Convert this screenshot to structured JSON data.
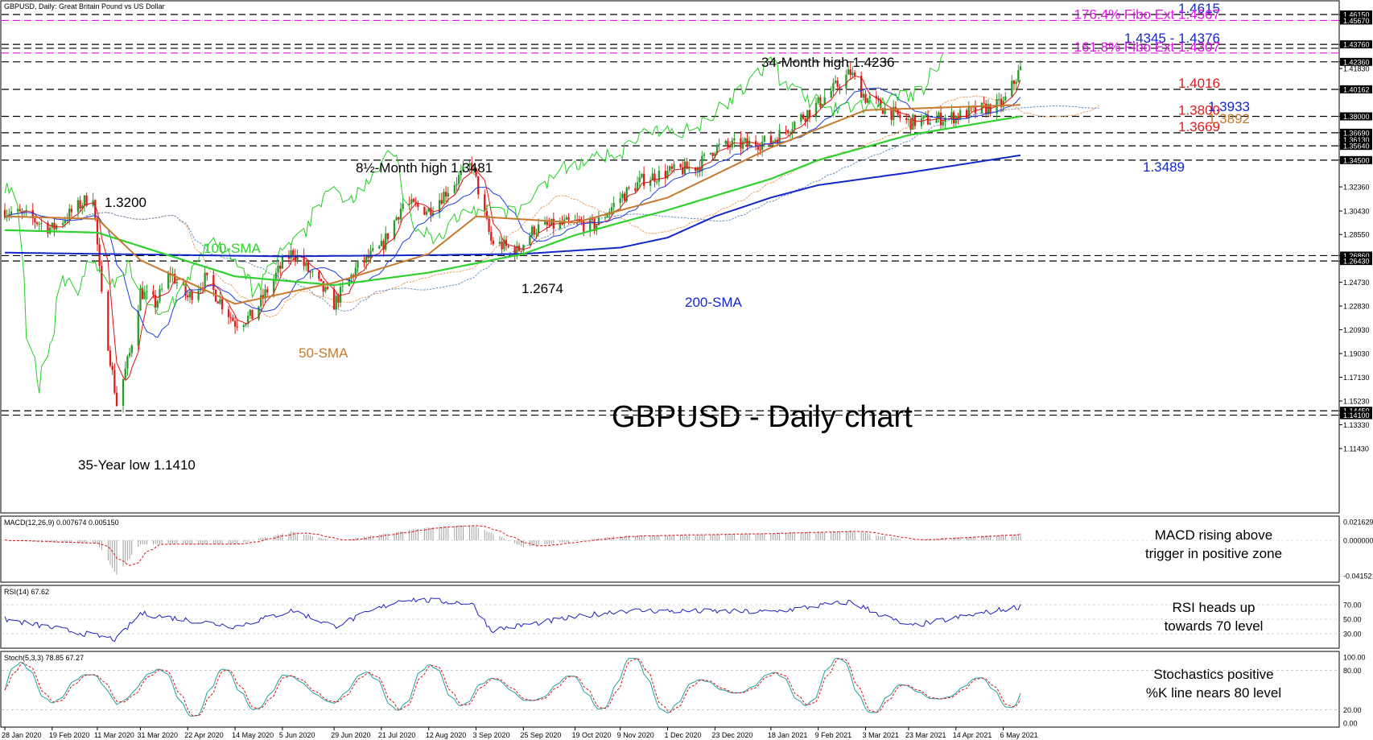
{
  "header": {
    "title": "GBPUSD, Daily:  Great Britain Pound vs US Dollar"
  },
  "main_title": "GBPUSD - Daily chart",
  "colors": {
    "bull": "#2a9a2a",
    "bear": "#e31b1b",
    "sma50": "#c57a30",
    "sma100": "#2fd12f",
    "sma200": "#1428c8",
    "tenkan": "#e01010",
    "kijun": "#1e3ce6",
    "chikou": "#22d022",
    "senkou_a": "#e8a060",
    "senkou_b": "#4a90e0",
    "fibo": "#e014e0",
    "rsi": "#2020c0",
    "macd_hist": "#a0a0a0",
    "macd_signal": "#e01010",
    "stoch_k": "#20a0a0",
    "stoch_d": "#e01010"
  },
  "x_tick_labels": [
    "28 Jan 2020",
    "19 Feb 2020",
    "11 Mar 2020",
    "31 Mar 2020",
    "22 Apr 2020",
    "14 May 2020",
    "5 Jun 2020",
    "29 Jun 2020",
    "21 Jul 2020",
    "12 Aug 2020",
    "3 Sep 2020",
    "25 Sep 2020",
    "19 Oct 2020",
    "9 Nov 2020",
    "1 Dec 2020",
    "23 Dec 2020",
    "18 Jan 2021",
    "9 Feb 2021",
    "3 Mar 2021",
    "23 Mar 2021",
    "14 Apr 2021",
    "6 May 2021"
  ],
  "main_axis_labels": [
    "1.46150",
    "1.45670",
    "1.43760",
    "1.42360",
    "1.41830",
    "1.40162",
    "1.38000",
    "1.36690",
    "1.36130",
    "1.35640",
    "1.34500",
    "1.32360",
    "1.30430",
    "1.28550",
    "1.26860",
    "1.26430",
    "1.24730",
    "1.22830",
    "1.20930",
    "1.19030",
    "1.17130",
    "1.15230",
    "1.14450",
    "1.14100",
    "1.13330",
    "1.11430"
  ],
  "main_axis_highlight": [
    "1.46150",
    "1.45670",
    "1.43760",
    "1.42360",
    "1.40162",
    "1.38000",
    "1.36690",
    "1.36130",
    "1.35640",
    "1.34500",
    "1.26860",
    "1.26430",
    "1.14450",
    "1.14100"
  ],
  "levels": [
    {
      "price": 1.4615,
      "label": "1.4615",
      "color": "#1428c8",
      "style": "dash"
    },
    {
      "price": 1.4567,
      "label": "176.4% Fibo Ext 1.4567",
      "color": "#e014e0",
      "style": "fibo"
    },
    {
      "price": 1.4376,
      "label": "1.4345 - 1.4376",
      "color": "#1428c8",
      "style": "dash"
    },
    {
      "price": 1.4345,
      "label": "",
      "color": "#000000",
      "style": "dash"
    },
    {
      "price": 1.4307,
      "label": "161.8% Fibo Ext 1.4307",
      "color": "#e014e0",
      "style": "fibo"
    },
    {
      "price": 1.4236,
      "label": "",
      "color": "#000000",
      "style": "dash"
    },
    {
      "price": 1.4016,
      "label": "1.4016",
      "color": "#e31b1b",
      "style": "dash"
    },
    {
      "price": 1.38,
      "label": "1.3800",
      "color": "#e31b1b",
      "style": "dash"
    },
    {
      "price": 1.3669,
      "label": "1.3669",
      "color": "#e31b1b",
      "style": "dash"
    },
    {
      "price": 1.3564,
      "label": "",
      "color": "#000000",
      "style": "dash"
    },
    {
      "price": 1.345,
      "label": "",
      "color": "#000000",
      "style": "dash"
    },
    {
      "price": 1.2686,
      "label": "",
      "color": "#000000",
      "style": "dash"
    },
    {
      "price": 1.2643,
      "label": "",
      "color": "#000000",
      "style": "dash"
    },
    {
      "price": 1.1445,
      "label": "",
      "color": "#000000",
      "style": "dash"
    },
    {
      "price": 1.141,
      "label": "",
      "color": "#000000",
      "style": "dash"
    }
  ],
  "annotations": {
    "high34": "34-Month high 1.4236",
    "high8": "8½-Month high 1.3481",
    "low35": "35-Year low 1.1410",
    "p13200": "1.3200",
    "p12674": "1.2674",
    "sma100": "100-SMA",
    "sma200": "200-SMA",
    "sma50": "50-SMA",
    "v13933": "1.3933",
    "v13892": "1.3892",
    "v13489": "1.3489"
  },
  "macd": {
    "title": "MACD(12,26,9) 0.007674 0.005150",
    "axis_labels": [
      "0.021629",
      "0.000000",
      "-0.041521"
    ],
    "comment_line1": "MACD rising above",
    "comment_line2": "trigger in positive zone"
  },
  "rsi": {
    "title": "RSI(14) 67.62",
    "axis_labels": [
      "70.00",
      "50.00",
      "30.00"
    ],
    "comment_line1": "RSI heads up",
    "comment_line2": "towards 70 level"
  },
  "stoch": {
    "title": "Stoch(5,3,3) 78.85 67.27",
    "axis_labels": [
      "100.00",
      "80.00",
      "20.00",
      "0.00"
    ],
    "comment_line1": "Stochastics positive",
    "comment_line2": "%K line nears 80 level"
  },
  "chart_data": {
    "type": "candlestick",
    "title": "GBPUSD - Daily chart",
    "ylim": [
      1.105,
      1.468
    ],
    "date_range": [
      "28 Jan 2020",
      "14 May 2021"
    ],
    "close_anchors": [
      {
        "date": "28 Jan 2020",
        "value": 1.305
      },
      {
        "date": "7 Feb 2020",
        "value": 1.3
      },
      {
        "date": "19 Feb 2020",
        "value": 1.29
      },
      {
        "date": "9 Mar 2020",
        "value": 1.318
      },
      {
        "date": "13 Mar 2020",
        "value": 1.235
      },
      {
        "date": "20 Mar 2020",
        "value": 1.15
      },
      {
        "date": "26 Mar 2020",
        "value": 1.19
      },
      {
        "date": "31 Mar 2020",
        "value": 1.24
      },
      {
        "date": "7 Apr 2020",
        "value": 1.23
      },
      {
        "date": "14 Apr 2020",
        "value": 1.255
      },
      {
        "date": "22 Apr 2020",
        "value": 1.235
      },
      {
        "date": "30 Apr 2020",
        "value": 1.25
      },
      {
        "date": "14 May 2020",
        "value": 1.215
      },
      {
        "date": "22 May 2020",
        "value": 1.22
      },
      {
        "date": "5 Jun 2020",
        "value": 1.262
      },
      {
        "date": "10 Jun 2020",
        "value": 1.272
      },
      {
        "date": "29 Jun 2020",
        "value": 1.23
      },
      {
        "date": "10 Jul 2020",
        "value": 1.26
      },
      {
        "date": "21 Jul 2020",
        "value": 1.275
      },
      {
        "date": "31 Jul 2020",
        "value": 1.31
      },
      {
        "date": "12 Aug 2020",
        "value": 1.305
      },
      {
        "date": "1 Sep 2020",
        "value": 1.342
      },
      {
        "date": "10 Sep 2020",
        "value": 1.28
      },
      {
        "date": "22 Sep 2020",
        "value": 1.272
      },
      {
        "date": "30 Sep 2020",
        "value": 1.29
      },
      {
        "date": "19 Oct 2020",
        "value": 1.295
      },
      {
        "date": "28 Oct 2020",
        "value": 1.292
      },
      {
        "date": "9 Nov 2020",
        "value": 1.315
      },
      {
        "date": "20 Nov 2020",
        "value": 1.33
      },
      {
        "date": "1 Dec 2020",
        "value": 1.335
      },
      {
        "date": "15 Dec 2020",
        "value": 1.34
      },
      {
        "date": "23 Dec 2020",
        "value": 1.355
      },
      {
        "date": "18 Jan 2021",
        "value": 1.36
      },
      {
        "date": "9 Feb 2021",
        "value": 1.39
      },
      {
        "date": "24 Feb 2021",
        "value": 1.415
      },
      {
        "date": "3 Mar 2021",
        "value": 1.395
      },
      {
        "date": "23 Mar 2021",
        "value": 1.375
      },
      {
        "date": "14 Apr 2021",
        "value": 1.38
      },
      {
        "date": "6 May 2021",
        "value": 1.39
      },
      {
        "date": "14 May 2021",
        "value": 1.418
      }
    ],
    "sma200": [
      {
        "date": "28 Jan 2020",
        "value": 1.271
      },
      {
        "date": "5 Jun 2020",
        "value": 1.268
      },
      {
        "date": "12 Aug 2020",
        "value": 1.269
      },
      {
        "date": "25 Sep 2020",
        "value": 1.27
      },
      {
        "date": "9 Nov 2020",
        "value": 1.275
      },
      {
        "date": "1 Dec 2020",
        "value": 1.283
      },
      {
        "date": "23 Dec 2020",
        "value": 1.3
      },
      {
        "date": "18 Jan 2021",
        "value": 1.315
      },
      {
        "date": "9 Feb 2021",
        "value": 1.325
      },
      {
        "date": "23 Mar 2021",
        "value": 1.335
      },
      {
        "date": "14 May 2021",
        "value": 1.3489
      }
    ],
    "sma100": [
      {
        "date": "28 Jan 2020",
        "value": 1.289
      },
      {
        "date": "11 Mar 2020",
        "value": 1.287
      },
      {
        "date": "14 May 2020",
        "value": 1.252
      },
      {
        "date": "29 Jun 2020",
        "value": 1.245
      },
      {
        "date": "12 Aug 2020",
        "value": 1.255
      },
      {
        "date": "25 Sep 2020",
        "value": 1.27
      },
      {
        "date": "19 Oct 2020",
        "value": 1.285
      },
      {
        "date": "9 Nov 2020",
        "value": 1.295
      },
      {
        "date": "1 Dec 2020",
        "value": 1.305
      },
      {
        "date": "18 Jan 2021",
        "value": 1.33
      },
      {
        "date": "9 Feb 2021",
        "value": 1.345
      },
      {
        "date": "23 Mar 2021",
        "value": 1.365
      },
      {
        "date": "14 May 2021",
        "value": 1.38
      }
    ],
    "sma50": [
      {
        "date": "28 Jan 2020",
        "value": 1.3
      },
      {
        "date": "11 Mar 2020",
        "value": 1.298
      },
      {
        "date": "31 Mar 2020",
        "value": 1.265
      },
      {
        "date": "14 May 2020",
        "value": 1.23
      },
      {
        "date": "29 Jun 2020",
        "value": 1.247
      },
      {
        "date": "12 Aug 2020",
        "value": 1.27
      },
      {
        "date": "3 Sep 2020",
        "value": 1.3
      },
      {
        "date": "19 Oct 2020",
        "value": 1.295
      },
      {
        "date": "1 Dec 2020",
        "value": 1.315
      },
      {
        "date": "18 Jan 2021",
        "value": 1.355
      },
      {
        "date": "9 Feb 2021",
        "value": 1.37
      },
      {
        "date": "3 Mar 2021",
        "value": 1.385
      },
      {
        "date": "14 May 2021",
        "value": 1.3892
      }
    ],
    "macd_anchors": [
      {
        "date": "28 Jan 2020",
        "value": 0.0
      },
      {
        "date": "11 Mar 2020",
        "value": -0.004
      },
      {
        "date": "20 Mar 2020",
        "value": -0.04
      },
      {
        "date": "31 Mar 2020",
        "value": -0.005
      },
      {
        "date": "14 May 2020",
        "value": -0.004
      },
      {
        "date": "10 Jun 2020",
        "value": 0.01
      },
      {
        "date": "29 Jun 2020",
        "value": -0.001
      },
      {
        "date": "12 Aug 2020",
        "value": 0.015
      },
      {
        "date": "1 Sep 2020",
        "value": 0.018
      },
      {
        "date": "25 Sep 2020",
        "value": -0.008
      },
      {
        "date": "9 Nov 2020",
        "value": 0.005
      },
      {
        "date": "18 Jan 2021",
        "value": 0.008
      },
      {
        "date": "24 Feb 2021",
        "value": 0.011
      },
      {
        "date": "23 Mar 2021",
        "value": 0.0
      },
      {
        "date": "14 May 2021",
        "value": 0.0077
      }
    ],
    "rsi_anchors": [
      {
        "date": "28 Jan 2020",
        "value": 50
      },
      {
        "date": "20 Mar 2020",
        "value": 22
      },
      {
        "date": "31 Mar 2020",
        "value": 58
      },
      {
        "date": "14 May 2020",
        "value": 40
      },
      {
        "date": "10 Jun 2020",
        "value": 62
      },
      {
        "date": "29 Jun 2020",
        "value": 40
      },
      {
        "date": "31 Jul 2020",
        "value": 78
      },
      {
        "date": "1 Sep 2020",
        "value": 72
      },
      {
        "date": "10 Sep 2020",
        "value": 35
      },
      {
        "date": "9 Nov 2020",
        "value": 62
      },
      {
        "date": "18 Jan 2021",
        "value": 60
      },
      {
        "date": "24 Feb 2021",
        "value": 74
      },
      {
        "date": "23 Mar 2021",
        "value": 40
      },
      {
        "date": "14 May 2021",
        "value": 67.62
      }
    ],
    "stoch_anchors": [
      {
        "date": "28 Jan 2020",
        "value": 50
      },
      {
        "date": "11 Mar 2020",
        "value": 95
      },
      {
        "date": "20 Mar 2020",
        "value": 5
      },
      {
        "date": "31 Mar 2020",
        "value": 90
      },
      {
        "date": "14 May 2020",
        "value": 10
      },
      {
        "date": "5 Jun 2020",
        "value": 92
      },
      {
        "date": "29 Jun 2020",
        "value": 15
      },
      {
        "date": "21 Jul 2020",
        "value": 90
      },
      {
        "date": "12 Aug 2020",
        "value": 40
      },
      {
        "date": "3 Sep 2020",
        "value": 85
      },
      {
        "date": "25 Sep 2020",
        "value": 20
      },
      {
        "date": "9 Nov 2020",
        "value": 90
      },
      {
        "date": "1 Dec 2020",
        "value": 40
      },
      {
        "date": "9 Feb 2021",
        "value": 92
      },
      {
        "date": "23 Mar 2021",
        "value": 15
      },
      {
        "date": "14 May 2021",
        "value": 78.85
      }
    ]
  }
}
